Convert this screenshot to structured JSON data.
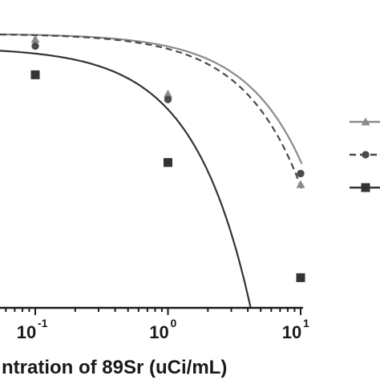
{
  "chart_data": {
    "type": "scatter",
    "x_scale": "log",
    "xlim_visible": [
      0.0316,
      12
    ],
    "ylim_visible": [
      0,
      1.05
    ],
    "xlabel": "ntration of 89Sr (uCi/mL)",
    "ylabel": "",
    "title": "",
    "grid": false,
    "legend": "right",
    "x_ticks": [
      {
        "value": 0.1,
        "base": "10",
        "exp": "-1"
      },
      {
        "value": 1,
        "base": "10",
        "exp": "0"
      },
      {
        "value": 10,
        "base": "10",
        "exp": "1"
      }
    ],
    "series": [
      {
        "marker": "triangle",
        "line_style": "solid",
        "line_color": "#8a8a8a",
        "marker_color": "#8a8a8a",
        "points": [
          {
            "x": 0.1,
            "y": 0.98
          },
          {
            "x": 1,
            "y": 0.78
          },
          {
            "x": 10,
            "y": 0.45
          }
        ],
        "fit_top": 1.0,
        "fit_ec50": 21.5
      },
      {
        "marker": "circle",
        "line_style": "dashed",
        "line_color": "#4a4a4a",
        "marker_color": "#4a4a4a",
        "points": [
          {
            "x": 0.1,
            "y": 0.955
          },
          {
            "x": 1,
            "y": 0.76
          },
          {
            "x": 10,
            "y": 0.49
          }
        ],
        "fit_top": 1.0,
        "fit_ec50": 18
      },
      {
        "marker": "square",
        "line_style": "solid",
        "line_color": "#333333",
        "marker_color": "#333333",
        "points": [
          {
            "x": 0.1,
            "y": 0.85
          },
          {
            "x": 1,
            "y": 0.53
          },
          {
            "x": 10,
            "y": 0.11
          }
        ],
        "fit_top": 0.95,
        "fit_ec50": 4.2
      }
    ]
  }
}
